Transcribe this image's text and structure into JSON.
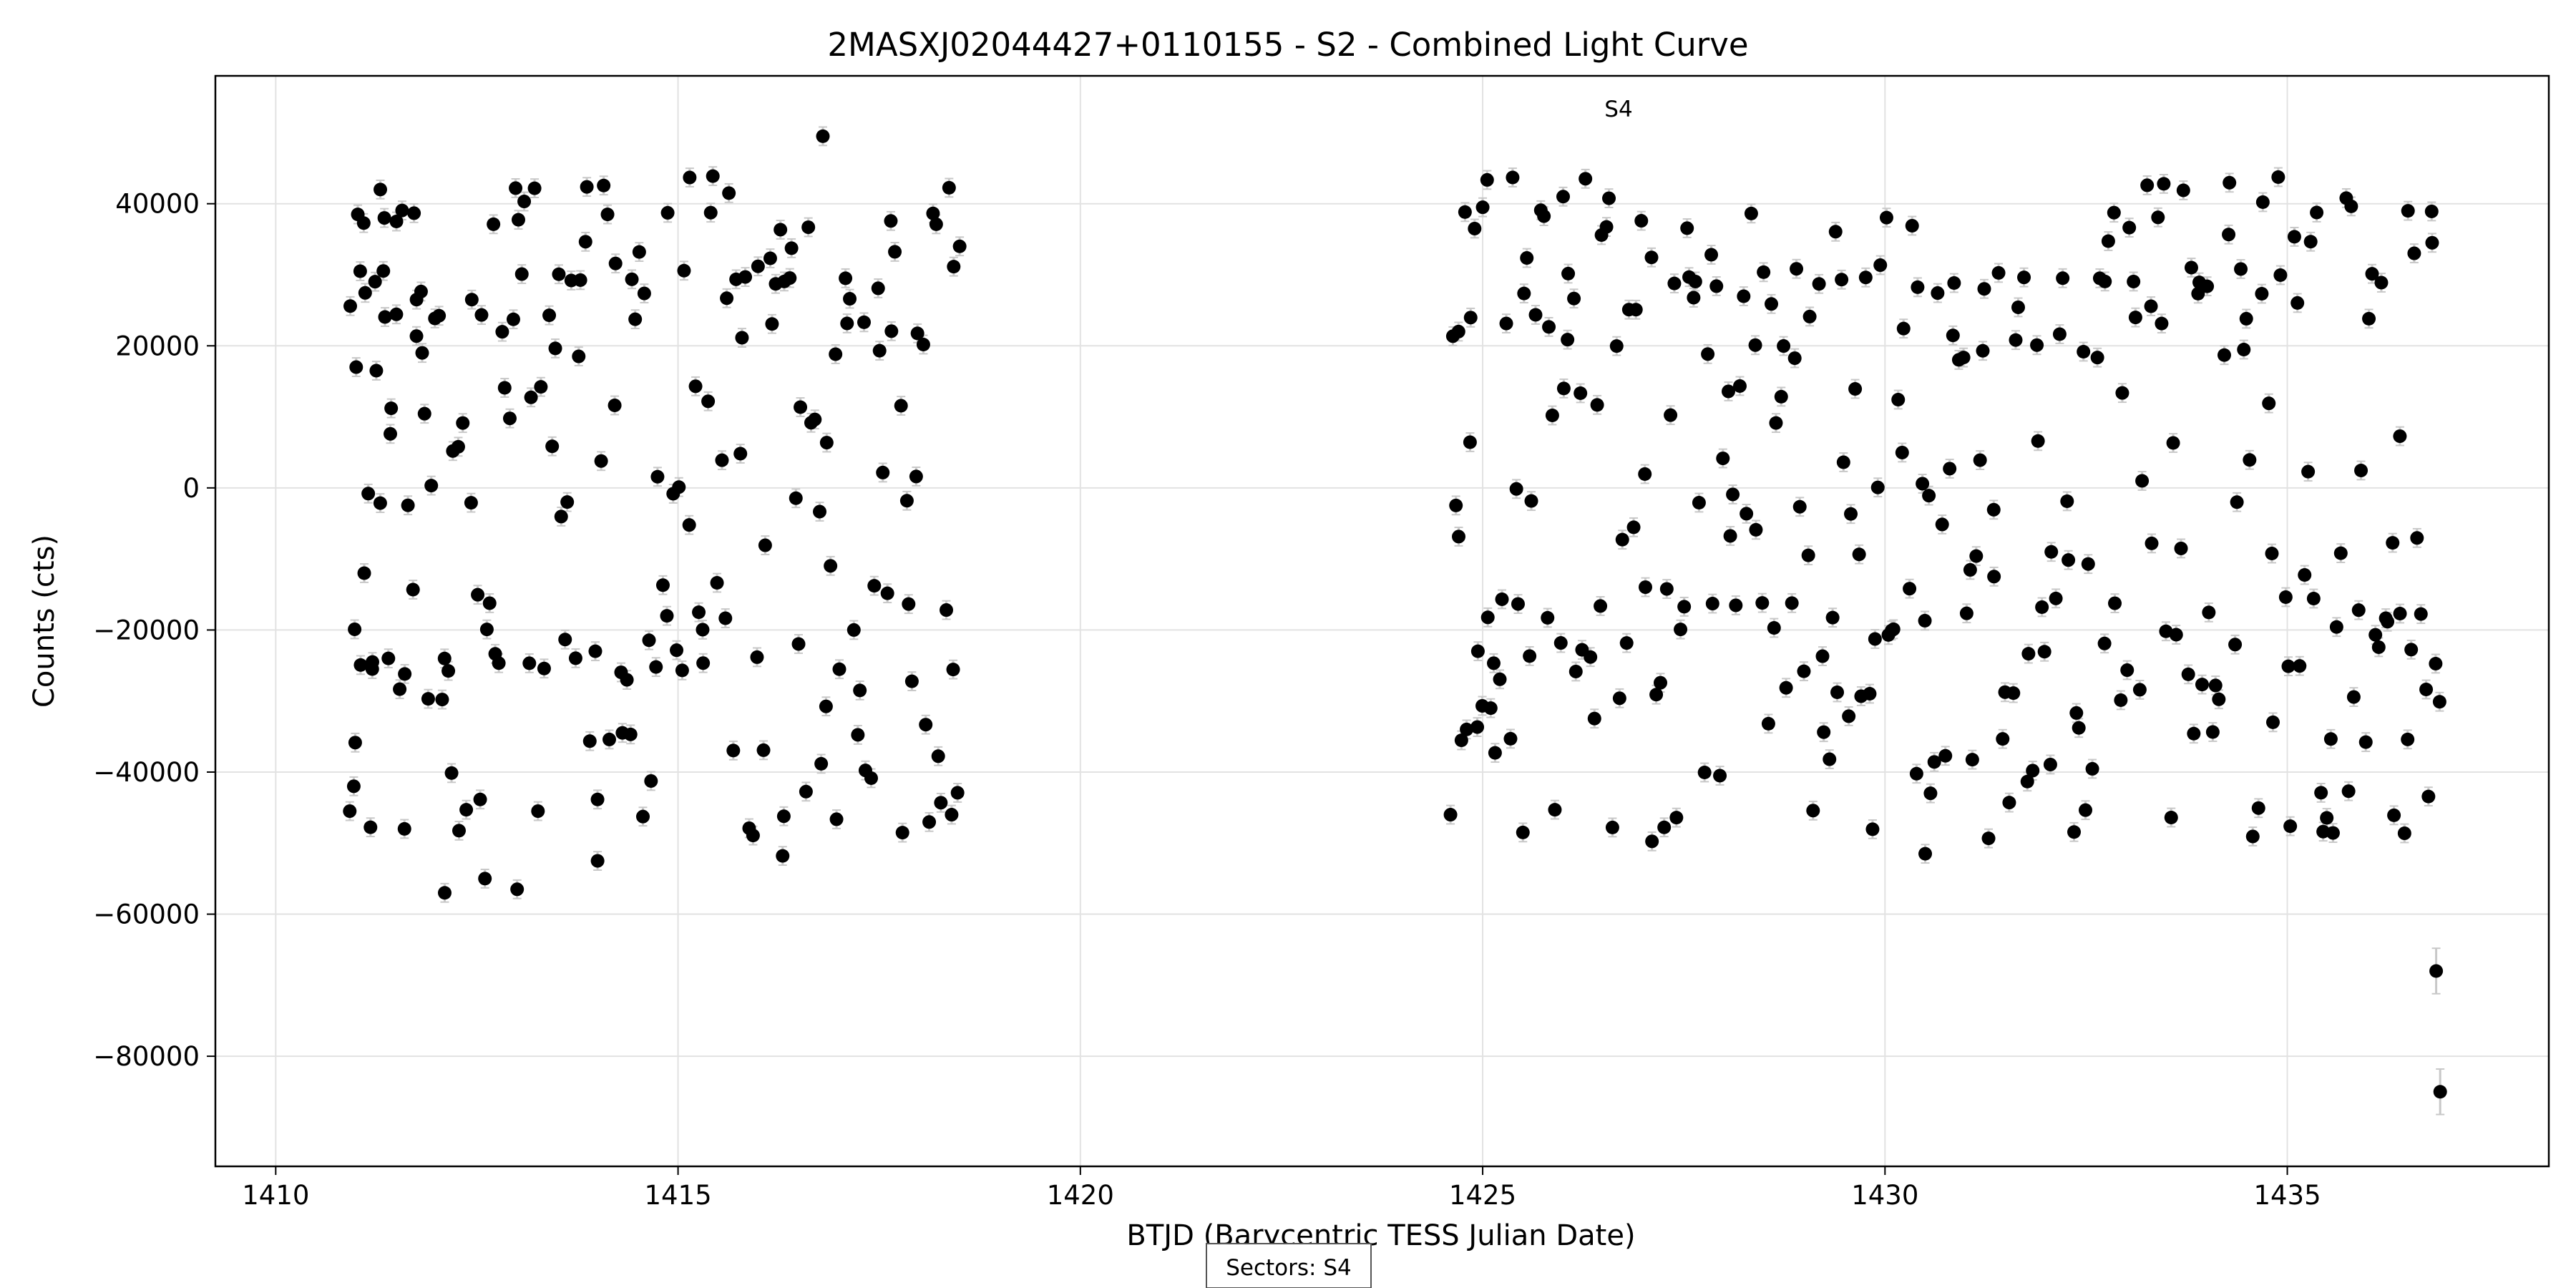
{
  "chart_data": {
    "type": "scatter",
    "title": "2MASXJ02044427+0110155 - S2 - Combined Light Curve",
    "xlabel": "BTJD (Barycentric TESS Julian Date)",
    "ylabel": "Counts (cts)",
    "xlim": [
      1409.25,
      1438.25
    ],
    "ylim": [
      -95500,
      58000
    ],
    "x_ticks": [
      1410,
      1415,
      1420,
      1425,
      1430,
      1435
    ],
    "x_tick_labels": [
      "1410",
      "1415",
      "1420",
      "1425",
      "1430",
      "1435"
    ],
    "y_ticks": [
      40000,
      20000,
      0,
      -20000,
      -40000,
      -60000,
      -80000
    ],
    "y_tick_labels": [
      "40000",
      "20000",
      "0",
      "−20000",
      "−40000",
      "−60000",
      "−80000"
    ],
    "grid": true,
    "marker_color": "#000000",
    "errorbar_color": "#c8c8c8",
    "annotations": [
      {
        "text": "S4",
        "x": 1426.8,
        "y": 53000
      }
    ],
    "legend": {
      "text": "Sectors: S4",
      "placement": "bottom-center"
    },
    "series": [
      {
        "segment": "1410.9-1418.5",
        "x_start": 1410.9,
        "x_end": 1418.5,
        "points": 212,
        "samples": [
          [
            1410.92,
            -45500
          ],
          [
            1410.97,
            -42000
          ],
          [
            1411.0,
            17000
          ],
          [
            1411.02,
            38500
          ],
          [
            1411.05,
            30500
          ],
          [
            1411.1,
            -12000
          ],
          [
            1411.15,
            -800
          ],
          [
            1411.2,
            -25500
          ],
          [
            1411.25,
            16500
          ],
          [
            1411.3,
            42000
          ],
          [
            1411.35,
            38000
          ],
          [
            1411.4,
            -24000
          ],
          [
            1411.5,
            37500
          ],
          [
            1411.6,
            -48000
          ],
          [
            1411.75,
            26500
          ],
          [
            1411.82,
            19000
          ],
          [
            1412.1,
            -57000
          ],
          [
            1412.6,
            -55000
          ],
          [
            1413.0,
            -56500
          ],
          [
            1416.8,
            49500
          ],
          [
            1414.0,
            -52500
          ],
          [
            1416.3,
            -51800
          ],
          [
            1418.4,
            -46000
          ],
          [
            1418.5,
            34000
          ]
        ]
      },
      {
        "segment": "1424.6-1436.9",
        "x_start": 1424.6,
        "x_end": 1436.9,
        "points": 308,
        "samples": [
          [
            1424.6,
            -46000
          ],
          [
            1424.7,
            22000
          ],
          [
            1424.8,
            -34000
          ],
          [
            1424.9,
            36500
          ],
          [
            1425.0,
            39500
          ],
          [
            1425.1,
            -31000
          ],
          [
            1425.5,
            -48500
          ],
          [
            1426.0,
            41000
          ],
          [
            1430.5,
            -51500
          ],
          [
            1436.5,
            39000
          ],
          [
            1436.8,
            34500
          ],
          [
            1436.85,
            -68000
          ],
          [
            1436.9,
            -85000
          ]
        ]
      }
    ]
  }
}
